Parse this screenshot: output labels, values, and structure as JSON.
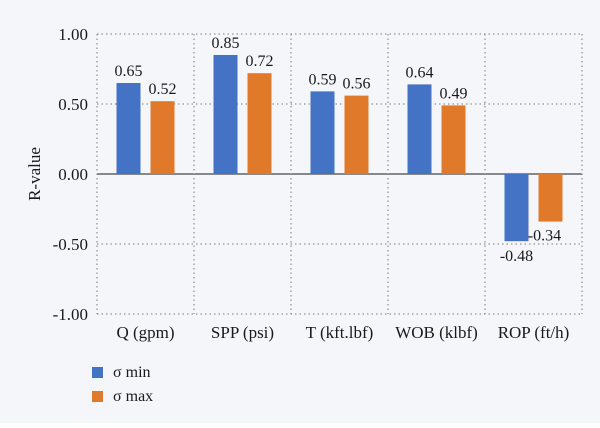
{
  "chart_data": {
    "type": "bar",
    "title": "",
    "xlabel": "",
    "ylabel": "R-value",
    "categories": [
      "Q (gpm)",
      "SPP (psi)",
      "T (kft.lbf)",
      "WOB (klbf)",
      "ROP (ft/h)"
    ],
    "series": [
      {
        "name": "σ min",
        "color": "#4472c4",
        "values": [
          0.65,
          0.85,
          0.59,
          0.64,
          -0.48
        ],
        "labels": [
          "0.65",
          "0.85",
          "0.59",
          "0.64",
          "-0.48"
        ]
      },
      {
        "name": "σ max",
        "color": "#e07a2a",
        "values": [
          0.52,
          0.72,
          0.56,
          0.49,
          -0.34
        ],
        "labels": [
          "0.52",
          "0.72",
          "0.56",
          "0.49",
          "-0.34"
        ]
      }
    ],
    "ylim": [
      -1.0,
      1.0
    ],
    "yticks": [
      1.0,
      0.5,
      0.0,
      -0.5,
      -1.0
    ],
    "ytick_labels": [
      "1.00",
      "0.50",
      "0.00",
      "-0.50",
      "-1.00"
    ],
    "grid": true,
    "legend_position": "bottom-left"
  }
}
